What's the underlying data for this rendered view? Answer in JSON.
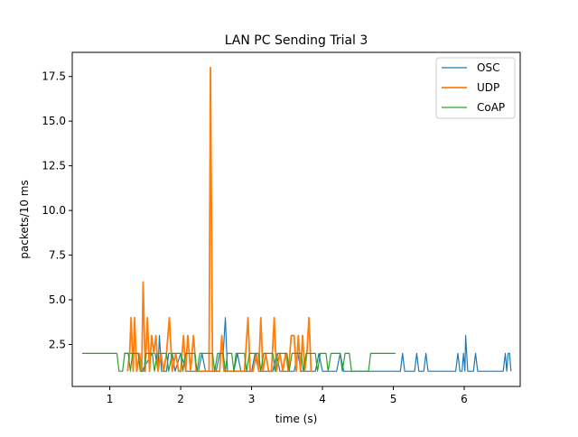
{
  "chart_data": {
    "type": "line",
    "title": "LAN PC Sending Trial 3",
    "xlabel": "time (s)",
    "ylabel": "packets/10 ms",
    "xlim": [
      0.47,
      6.79
    ],
    "ylim": [
      0.15,
      18.85
    ],
    "xticks": [
      1,
      2,
      3,
      4,
      5,
      6
    ],
    "xtick_labels": [
      "1",
      "2",
      "3",
      "4",
      "5",
      "6"
    ],
    "yticks": [
      2.5,
      5.0,
      7.5,
      10.0,
      12.5,
      15.0,
      17.5
    ],
    "ytick_labels": [
      "2.5",
      "5.0",
      "7.5",
      "10.0",
      "12.5",
      "15.0",
      "17.5"
    ],
    "grid": false,
    "legend_position": "top-right",
    "series": [
      {
        "name": "OSC",
        "color": "#1f77b4",
        "width": 1.2,
        "points": [
          [
            1.2,
            2
          ],
          [
            1.4,
            2
          ],
          [
            1.45,
            1
          ],
          [
            1.6,
            2
          ],
          [
            1.64,
            2
          ],
          [
            1.68,
            1
          ],
          [
            1.7,
            3
          ],
          [
            1.73,
            1
          ],
          [
            1.8,
            1
          ],
          [
            1.83,
            2
          ],
          [
            1.88,
            2
          ],
          [
            1.92,
            1
          ],
          [
            2.0,
            2
          ],
          [
            2.08,
            1
          ],
          [
            2.25,
            1
          ],
          [
            2.3,
            2
          ],
          [
            2.35,
            1
          ],
          [
            2.5,
            1
          ],
          [
            2.55,
            2
          ],
          [
            2.6,
            2
          ],
          [
            2.63,
            4
          ],
          [
            2.66,
            1
          ],
          [
            2.75,
            1
          ],
          [
            2.8,
            2
          ],
          [
            2.85,
            1
          ],
          [
            3.0,
            1
          ],
          [
            3.05,
            2
          ],
          [
            3.1,
            1
          ],
          [
            3.3,
            1
          ],
          [
            3.35,
            2
          ],
          [
            3.4,
            1
          ],
          [
            3.6,
            1
          ],
          [
            3.65,
            2
          ],
          [
            3.7,
            1
          ],
          [
            3.9,
            1
          ],
          [
            3.95,
            2
          ],
          [
            4.0,
            1
          ],
          [
            4.2,
            1
          ],
          [
            4.25,
            2
          ],
          [
            4.3,
            1
          ],
          [
            4.8,
            1
          ],
          [
            5.1,
            1
          ],
          [
            5.13,
            2
          ],
          [
            5.16,
            1
          ],
          [
            5.3,
            1
          ],
          [
            5.33,
            2
          ],
          [
            5.36,
            1
          ],
          [
            5.43,
            1
          ],
          [
            5.46,
            2
          ],
          [
            5.49,
            1
          ],
          [
            5.88,
            1
          ],
          [
            5.91,
            2
          ],
          [
            5.94,
            1
          ],
          [
            5.97,
            1
          ],
          [
            5.99,
            2
          ],
          [
            6.01,
            1
          ],
          [
            6.02,
            3
          ],
          [
            6.05,
            1
          ],
          [
            6.13,
            1
          ],
          [
            6.16,
            2
          ],
          [
            6.19,
            1
          ],
          [
            6.55,
            1
          ],
          [
            6.58,
            2
          ],
          [
            6.6,
            1
          ],
          [
            6.62,
            2
          ],
          [
            6.64,
            2
          ],
          [
            6.66,
            1
          ]
        ]
      },
      {
        "name": "UDP",
        "color": "#ff7f0e",
        "width": 1.8,
        "points": [
          [
            1.25,
            1
          ],
          [
            1.28,
            2
          ],
          [
            1.3,
            4
          ],
          [
            1.33,
            1
          ],
          [
            1.35,
            4
          ],
          [
            1.38,
            1
          ],
          [
            1.42,
            2
          ],
          [
            1.45,
            1
          ],
          [
            1.47,
            6
          ],
          [
            1.5,
            1
          ],
          [
            1.53,
            4
          ],
          [
            1.56,
            1
          ],
          [
            1.59,
            3
          ],
          [
            1.62,
            2
          ],
          [
            1.65,
            3
          ],
          [
            1.68,
            1
          ],
          [
            1.72,
            2
          ],
          [
            1.76,
            1
          ],
          [
            1.8,
            2
          ],
          [
            1.84,
            4
          ],
          [
            1.88,
            1
          ],
          [
            1.93,
            2
          ],
          [
            1.97,
            1
          ],
          [
            2.0,
            1
          ],
          [
            2.04,
            3
          ],
          [
            2.07,
            1
          ],
          [
            2.1,
            3
          ],
          [
            2.14,
            1
          ],
          [
            2.18,
            3
          ],
          [
            2.22,
            1
          ],
          [
            2.28,
            1
          ],
          [
            2.32,
            1
          ],
          [
            2.36,
            1
          ],
          [
            2.4,
            1
          ],
          [
            2.42,
            18
          ],
          [
            2.45,
            1
          ],
          [
            2.5,
            1
          ],
          [
            2.55,
            1
          ],
          [
            2.58,
            3
          ],
          [
            2.61,
            1
          ],
          [
            2.65,
            1
          ],
          [
            2.7,
            1
          ],
          [
            2.75,
            1
          ],
          [
            2.8,
            1
          ],
          [
            2.85,
            1
          ],
          [
            2.9,
            1
          ],
          [
            2.95,
            4
          ],
          [
            2.98,
            1
          ],
          [
            3.02,
            1
          ],
          [
            3.07,
            2
          ],
          [
            3.1,
            1
          ],
          [
            3.13,
            4
          ],
          [
            3.16,
            1
          ],
          [
            3.2,
            2
          ],
          [
            3.24,
            1
          ],
          [
            3.28,
            1
          ],
          [
            3.32,
            4
          ],
          [
            3.35,
            1
          ],
          [
            3.4,
            2
          ],
          [
            3.44,
            1
          ],
          [
            3.48,
            2
          ],
          [
            3.52,
            1
          ],
          [
            3.56,
            3
          ],
          [
            3.6,
            3
          ],
          [
            3.63,
            1
          ],
          [
            3.66,
            3
          ],
          [
            3.69,
            1
          ],
          [
            3.72,
            3
          ],
          [
            3.75,
            1
          ],
          [
            3.78,
            2
          ],
          [
            3.81,
            4
          ],
          [
            3.84,
            1
          ]
        ]
      },
      {
        "name": "CoAP",
        "color": "#2ca02c",
        "width": 1.2,
        "points": [
          [
            0.61,
            2
          ],
          [
            1.1,
            2
          ],
          [
            1.13,
            1
          ],
          [
            1.18,
            1
          ],
          [
            1.21,
            2
          ],
          [
            1.26,
            2
          ],
          [
            1.29,
            1
          ],
          [
            1.32,
            2
          ],
          [
            1.4,
            2
          ],
          [
            1.43,
            1
          ],
          [
            1.48,
            1
          ],
          [
            1.51,
            2
          ],
          [
            1.6,
            2
          ],
          [
            1.63,
            1
          ],
          [
            1.67,
            2
          ],
          [
            1.8,
            2
          ],
          [
            1.83,
            1
          ],
          [
            1.88,
            2
          ],
          [
            2.0,
            2
          ],
          [
            2.03,
            1
          ],
          [
            2.07,
            2
          ],
          [
            2.2,
            2
          ],
          [
            2.23,
            1
          ],
          [
            2.27,
            2
          ],
          [
            2.45,
            2
          ],
          [
            2.48,
            1
          ],
          [
            2.52,
            2
          ],
          [
            2.6,
            2
          ],
          [
            2.63,
            1
          ],
          [
            2.66,
            2
          ],
          [
            2.72,
            2
          ],
          [
            2.75,
            1
          ],
          [
            2.78,
            2
          ],
          [
            2.9,
            2
          ],
          [
            2.93,
            1
          ],
          [
            2.97,
            2
          ],
          [
            3.1,
            2
          ],
          [
            3.13,
            1
          ],
          [
            3.17,
            2
          ],
          [
            3.3,
            2
          ],
          [
            3.33,
            1
          ],
          [
            3.37,
            2
          ],
          [
            3.5,
            2
          ],
          [
            3.53,
            1
          ],
          [
            3.57,
            2
          ],
          [
            3.7,
            2
          ],
          [
            3.73,
            1
          ],
          [
            3.77,
            2
          ],
          [
            3.9,
            2
          ],
          [
            3.93,
            1
          ],
          [
            3.97,
            2
          ],
          [
            4.05,
            2
          ],
          [
            4.08,
            1
          ],
          [
            4.12,
            2
          ],
          [
            4.25,
            2
          ],
          [
            4.28,
            1
          ],
          [
            4.32,
            2
          ],
          [
            4.38,
            2
          ],
          [
            4.41,
            1
          ],
          [
            4.65,
            1
          ],
          [
            4.68,
            2
          ],
          [
            5.03,
            2
          ]
        ]
      }
    ]
  }
}
